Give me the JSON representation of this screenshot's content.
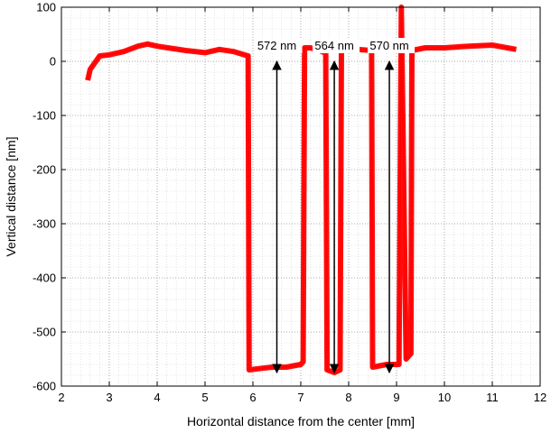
{
  "chart_data": {
    "type": "line",
    "title": "",
    "xlabel": "Horizontal distance from the center [mm]",
    "ylabel": "Vertical distance [nm]",
    "xlim": [
      2,
      12
    ],
    "ylim": [
      -600,
      100
    ],
    "x_ticks": [
      2,
      3,
      4,
      5,
      6,
      7,
      8,
      9,
      10,
      11,
      12
    ],
    "y_ticks": [
      -600,
      -500,
      -400,
      -300,
      -200,
      -100,
      0,
      100
    ],
    "grid": "on (major and minor, dotted)",
    "series": [
      {
        "color": "#ff0000",
        "points": [
          [
            2.55,
            -35
          ],
          [
            2.6,
            -15
          ],
          [
            2.8,
            10
          ],
          [
            3.0,
            12
          ],
          [
            3.3,
            18
          ],
          [
            3.6,
            28
          ],
          [
            3.8,
            32
          ],
          [
            4.0,
            28
          ],
          [
            4.3,
            24
          ],
          [
            4.6,
            20
          ],
          [
            5.0,
            16
          ],
          [
            5.3,
            22
          ],
          [
            5.6,
            18
          ],
          [
            5.9,
            10
          ],
          [
            5.92,
            -570
          ],
          [
            6.1,
            -568
          ],
          [
            6.4,
            -565
          ],
          [
            6.7,
            -565
          ],
          [
            7.0,
            -560
          ],
          [
            7.05,
            -555
          ],
          [
            7.08,
            25
          ],
          [
            7.2,
            25
          ],
          [
            7.4,
            20
          ],
          [
            7.52,
            15
          ],
          [
            7.55,
            -570
          ],
          [
            7.7,
            -575
          ],
          [
            7.82,
            -570
          ],
          [
            7.85,
            25
          ],
          [
            8.2,
            22
          ],
          [
            8.48,
            20
          ],
          [
            8.5,
            -565
          ],
          [
            8.8,
            -560
          ],
          [
            9.05,
            -560
          ],
          [
            9.1,
            100
          ],
          [
            9.2,
            -550
          ],
          [
            9.3,
            -540
          ],
          [
            9.32,
            20
          ],
          [
            9.6,
            25
          ],
          [
            10.0,
            25
          ],
          [
            10.5,
            28
          ],
          [
            11.0,
            30
          ],
          [
            11.5,
            22
          ]
        ]
      }
    ],
    "annotations": [
      {
        "text": "572 nm",
        "x": 6.5,
        "y_top": 0,
        "y_bottom": -575
      },
      {
        "text": "564 nm",
        "x": 7.7,
        "y_top": 0,
        "y_bottom": -575
      },
      {
        "text": "570 nm",
        "x": 8.85,
        "y_top": 0,
        "y_bottom": -575
      }
    ]
  }
}
